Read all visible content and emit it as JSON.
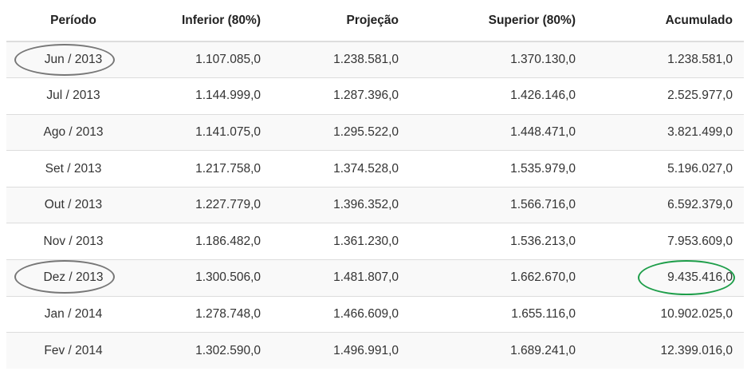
{
  "table": {
    "headers": [
      "Período",
      "Inferior (80%)",
      "Projeção",
      "Superior (80%)",
      "Acumulado"
    ],
    "rows": [
      [
        "Jun / 2013",
        "1.107.085,0",
        "1.238.581,0",
        "1.370.130,0",
        "1.238.581,0"
      ],
      [
        "Jul / 2013",
        "1.144.999,0",
        "1.287.396,0",
        "1.426.146,0",
        "2.525.977,0"
      ],
      [
        "Ago / 2013",
        "1.141.075,0",
        "1.295.522,0",
        "1.448.471,0",
        "3.821.499,0"
      ],
      [
        "Set / 2013",
        "1.217.758,0",
        "1.374.528,0",
        "1.535.979,0",
        "5.196.027,0"
      ],
      [
        "Out / 2013",
        "1.227.779,0",
        "1.396.352,0",
        "1.566.716,0",
        "6.592.379,0"
      ],
      [
        "Nov / 2013",
        "1.186.482,0",
        "1.361.230,0",
        "1.536.213,0",
        "7.953.609,0"
      ],
      [
        "Dez / 2013",
        "1.300.506,0",
        "1.481.807,0",
        "1.662.670,0",
        "9.435.416,0"
      ],
      [
        "Jan / 2014",
        "1.278.748,0",
        "1.466.609,0",
        "1.655.116,0",
        "10.902.025,0"
      ],
      [
        "Fev / 2014",
        "1.302.590,0",
        "1.496.991,0",
        "1.689.241,0",
        "12.399.016,0"
      ]
    ]
  },
  "colors": {
    "highlight_gray": "#777777",
    "highlight_green": "#1e9e4a",
    "border": "#dddddd",
    "stripe": "#f9f9f9"
  }
}
